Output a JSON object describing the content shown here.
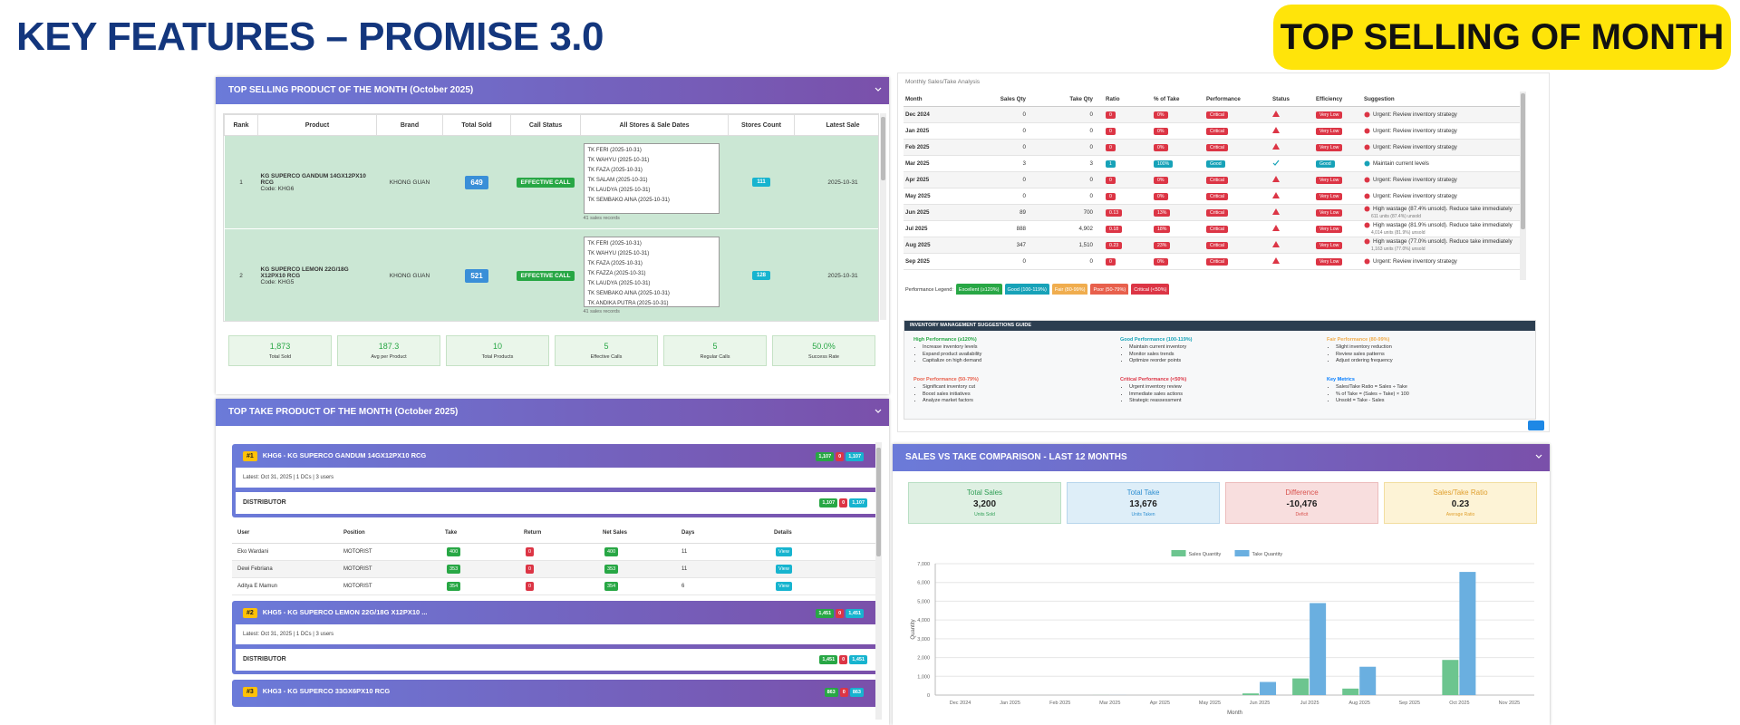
{
  "header": {
    "title": "KEY FEATURES – PROMISE 3.0",
    "badge": "TOP SELLING OF MONTH"
  },
  "top_selling": {
    "title": "TOP SELLING PRODUCT OF THE MONTH (October 2025)",
    "columns": [
      "Rank",
      "Product",
      "Brand",
      "Total Sold",
      "Call Status",
      "All Stores & Sale Dates",
      "Stores Count",
      "Latest Sale"
    ],
    "rows": [
      {
        "rank": "1",
        "product": "KG SUPERCO GANDUM 14GX12PX10 RCG",
        "code": "Code: KHG6",
        "brand": "KHONG GUAN",
        "total_sold": "649",
        "call_status": "EFFECTIVE CALL",
        "stores": [
          "TK FERI (2025-10-31)",
          "TK WAHYU (2025-10-31)",
          "TK FAZA (2025-10-31)",
          "TK SALAM (2025-10-31)",
          "TK LAUDYA (2025-10-31)",
          "TK SEMBAKO AINA (2025-10-31)"
        ],
        "records": "41 sales records",
        "stores_count": "111",
        "latest_sale": "2025-10-31"
      },
      {
        "rank": "2",
        "product": "KG SUPERCO LEMON 22G/18G X12PX10 RCG",
        "code": "Code: KHG5",
        "brand": "KHONG GUAN",
        "total_sold": "521",
        "call_status": "EFFECTIVE CALL",
        "stores": [
          "TK FERI (2025-10-31)",
          "TK WAHYU (2025-10-31)",
          "TK FAZA (2025-10-31)",
          "TK FAZZA (2025-10-31)",
          "TK LAUDYA (2025-10-31)",
          "TK SEMBAKO AINA (2025-10-31)",
          "TK ANDIKA PUTRA (2025-10-31)"
        ],
        "records": "41 sales records",
        "stores_count": "128",
        "latest_sale": "2025-10-31"
      }
    ],
    "summary": [
      {
        "value": "1,873",
        "label": "Total Sold"
      },
      {
        "value": "187.3",
        "label": "Avg per Product"
      },
      {
        "value": "10",
        "label": "Total Products"
      },
      {
        "value": "5",
        "label": "Effective Calls"
      },
      {
        "value": "5",
        "label": "Regular Calls"
      },
      {
        "value": "50.0%",
        "label": "Success Rate"
      }
    ]
  },
  "top_take": {
    "title": "TOP TAKE PRODUCT OF THE MONTH (October 2025)",
    "user_columns": [
      "User",
      "Position",
      "Take",
      "Return",
      "Net Sales",
      "Days",
      "Details"
    ],
    "products": [
      {
        "rank": "#1",
        "name": "KHG6 - KG SUPERCO GANDUM 14GX12PX10 RCG",
        "badges": [
          "1,107",
          "0",
          "1,107"
        ],
        "meta": "Latest: Oct 31, 2025 | 1 DCs | 3 users",
        "distributor": "DISTRIBUTOR",
        "dist_badges": [
          "1,107",
          "0",
          "1,107"
        ],
        "users": [
          [
            "Eko Wardani",
            "MOTORIST",
            "400",
            "0",
            "400",
            "11",
            "View"
          ],
          [
            "Dewi Febriana",
            "MOTORIST",
            "353",
            "0",
            "353",
            "11",
            "View"
          ],
          [
            "Aditya E Mamun",
            "MOTORIST",
            "354",
            "0",
            "354",
            "6",
            "View"
          ]
        ]
      },
      {
        "rank": "#2",
        "name": "KHG5 - KG SUPERCO LEMON 22G/18G X12PX10 ...",
        "badges": [
          "1,451",
          "0",
          "1,451"
        ],
        "meta": "Latest: Oct 31, 2025 | 1 DCs | 3 users",
        "distributor": "DISTRIBUTOR",
        "dist_badges": [
          "1,451",
          "0",
          "1,451"
        ]
      },
      {
        "rank": "#3",
        "name": "KHG3 - KG SUPERCO 33GX6PX10 RCG",
        "badges": [
          "863",
          "0",
          "863"
        ]
      }
    ]
  },
  "monthly": {
    "title": "Monthly Sales/Take Analysis",
    "columns": [
      "Month",
      "Sales Qty",
      "Take Qty",
      "Ratio",
      "% of Take",
      "Performance",
      "Status",
      "Efficiency",
      "Suggestion"
    ],
    "rows": [
      {
        "month": "Dec 2024",
        "sales": "0",
        "take": "0",
        "ratio": "0",
        "pct": "0%",
        "performance": "Critical",
        "efficiency": "Very Low",
        "suggestion": "Urgent: Review inventory strategy"
      },
      {
        "month": "Jan 2025",
        "sales": "0",
        "take": "0",
        "ratio": "0",
        "pct": "0%",
        "performance": "Critical",
        "efficiency": "Very Low",
        "suggestion": "Urgent: Review inventory strategy"
      },
      {
        "month": "Feb 2025",
        "sales": "0",
        "take": "0",
        "ratio": "0",
        "pct": "0%",
        "performance": "Critical",
        "efficiency": "Very Low",
        "suggestion": "Urgent: Review inventory strategy"
      },
      {
        "month": "Mar 2025",
        "sales": "3",
        "take": "3",
        "ratio": "1",
        "pct": "100%",
        "performance": "Good",
        "efficiency": "Good",
        "suggestion": "Maintain current levels"
      },
      {
        "month": "Apr 2025",
        "sales": "0",
        "take": "0",
        "ratio": "0",
        "pct": "0%",
        "performance": "Critical",
        "efficiency": "Very Low",
        "suggestion": "Urgent: Review inventory strategy"
      },
      {
        "month": "May 2025",
        "sales": "0",
        "take": "0",
        "ratio": "0",
        "pct": "0%",
        "performance": "Critical",
        "efficiency": "Very Low",
        "suggestion": "Urgent: Review inventory strategy"
      },
      {
        "month": "Jun 2025",
        "sales": "89",
        "take": "700",
        "ratio": "0.13",
        "pct": "13%",
        "performance": "Critical",
        "efficiency": "Very Low",
        "suggestion": "High wastage (87.4% unsold). Reduce take immediately",
        "note": "611 units (87.4%) unsold"
      },
      {
        "month": "Jul 2025",
        "sales": "888",
        "take": "4,902",
        "ratio": "0.18",
        "pct": "18%",
        "performance": "Critical",
        "efficiency": "Very Low",
        "suggestion": "High wastage (81.9% unsold). Reduce take immediately",
        "note": "4,014 units (81.9%) unsold"
      },
      {
        "month": "Aug 2025",
        "sales": "347",
        "take": "1,510",
        "ratio": "0.23",
        "pct": "23%",
        "performance": "Critical",
        "efficiency": "Very Low",
        "suggestion": "High wastage (77.0% unsold). Reduce take immediately",
        "note": "1,163 units (77.0%) unsold"
      },
      {
        "month": "Sep 2025",
        "sales": "0",
        "take": "0",
        "ratio": "0",
        "pct": "0%",
        "performance": "Critical",
        "efficiency": "Very Low",
        "suggestion": "Urgent: Review inventory strategy"
      }
    ]
  },
  "performance_legend": {
    "label": "Performance Legend:",
    "items": [
      {
        "text": "Excellent (≥120%)",
        "color": "#28a745"
      },
      {
        "text": "Good (100-119%)",
        "color": "#17a2b8"
      },
      {
        "text": "Fair (80-99%)",
        "color": "#f0ad4e"
      },
      {
        "text": "Poor (50-79%)",
        "color": "#e8604c"
      },
      {
        "text": "Critical (<50%)",
        "color": "#dc3545"
      }
    ]
  },
  "guide": {
    "title": "INVENTORY MANAGEMENT SUGGESTIONS GUIDE",
    "sections": [
      {
        "title": "High Performance (≥120%)",
        "color": "#28a745",
        "items": [
          "Increase inventory levels",
          "Expand product availability",
          "Capitalize on high demand"
        ]
      },
      {
        "title": "Good Performance (100-119%)",
        "color": "#17a2b8",
        "items": [
          "Maintain current inventory",
          "Monitor sales trends",
          "Optimize reorder points"
        ]
      },
      {
        "title": "Fair Performance (80-99%)",
        "color": "#f0ad4e",
        "items": [
          "Slight inventory reduction",
          "Review sales patterns",
          "Adjust ordering frequency"
        ]
      },
      {
        "title": "Poor Performance (50-79%)",
        "color": "#e8604c",
        "items": [
          "Significant inventory cut",
          "Boost sales initiatives",
          "Analyze market factors"
        ]
      },
      {
        "title": "Critical Performance (<50%)",
        "color": "#dc3545",
        "items": [
          "Urgent inventory review",
          "Immediate sales actions",
          "Strategic reassessment"
        ]
      },
      {
        "title": "Key Metrics",
        "color": "#007bff",
        "items": [
          "Sales/Take Ratio = Sales ÷ Take",
          "% of Take = (Sales ÷ Take) × 100",
          "Unsold = Take - Sales"
        ]
      }
    ]
  },
  "comparison": {
    "title": "SALES VS TAKE COMPARISON - LAST 12 MONTHS",
    "cards": [
      {
        "label": "Total Sales",
        "value": "3,200",
        "note": "Units Sold",
        "bg": "#dff0e3",
        "border": "#b9dfc4",
        "color": "#2e9e55"
      },
      {
        "label": "Total Take",
        "value": "13,676",
        "note": "Units Taken",
        "bg": "#deeef8",
        "border": "#b7d6ec",
        "color": "#2f8fd1"
      },
      {
        "label": "Difference",
        "value": "-10,476",
        "note": "Deficit",
        "bg": "#f8dede",
        "border": "#ecbcbc",
        "color": "#d9534f"
      },
      {
        "label": "Sales/Take Ratio",
        "value": "0.23",
        "note": "Average Ratio",
        "bg": "#fdf3d6",
        "border": "#f2dea0",
        "color": "#e0a030"
      }
    ],
    "chart": {
      "type": "bar",
      "categories": [
        "Dec 2024",
        "Jan 2025",
        "Feb 2025",
        "Mar 2025",
        "Apr 2025",
        "May 2025",
        "Jun 2025",
        "Jul 2025",
        "Aug 2025",
        "Sep 2025",
        "Oct 2025",
        "Nov 2025"
      ],
      "series": [
        {
          "name": "Sales Quantity",
          "color": "#6cc58f",
          "values": [
            0,
            0,
            0,
            3,
            0,
            0,
            89,
            888,
            347,
            0,
            1873,
            0
          ]
        },
        {
          "name": "Take Quantity",
          "color": "#6aafe0",
          "values": [
            0,
            0,
            0,
            3,
            0,
            0,
            700,
            4902,
            1510,
            0,
            6561,
            0
          ]
        }
      ],
      "ylim": [
        0,
        7000
      ],
      "yticks": [
        0,
        {
          "value": 1000,
          "label": "1,000"
        },
        {
          "value": 2000,
          "label": "2,000"
        },
        {
          "value": 3000,
          "label": "3,000"
        },
        {
          "value": 4000,
          "label": "4,000"
        },
        {
          "value": 5000,
          "label": "5,000"
        },
        {
          "value": 6000,
          "label": "6,000"
        },
        {
          "value": 7000,
          "label": "7,000"
        }
      ],
      "grid": true,
      "y_label": "Quantity",
      "x_label": "Month"
    }
  }
}
